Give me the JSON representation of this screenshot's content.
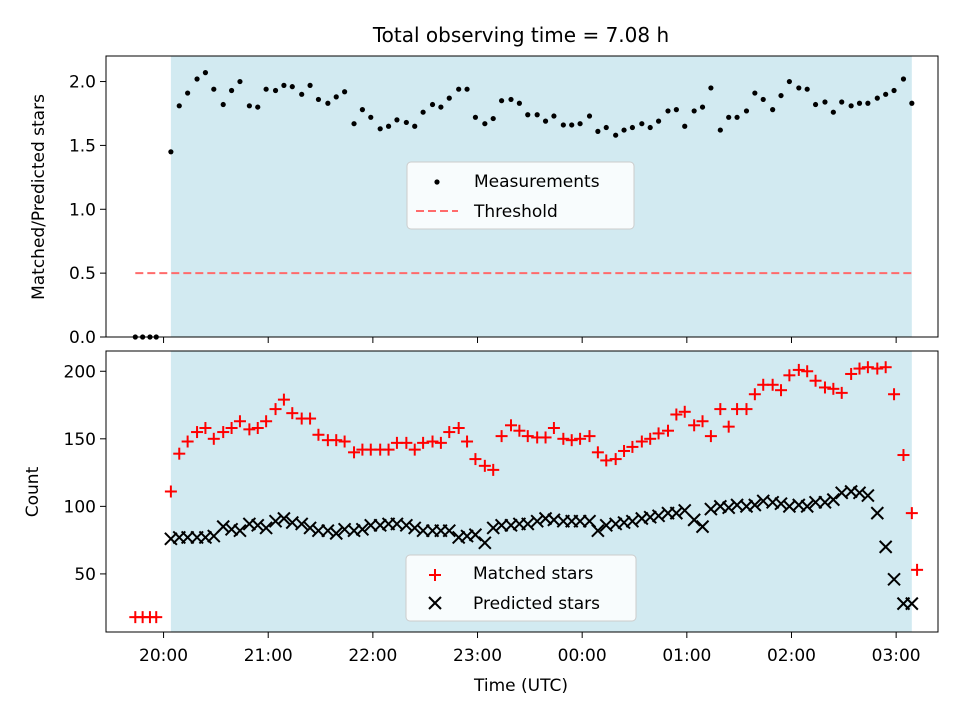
{
  "chart_data": [
    {
      "type": "scatter",
      "title": "Total observing time = 7.08 h",
      "xlabel": "",
      "ylabel": "Matched/Predicted stars",
      "xlim": [
        19.45,
        27.4
      ],
      "ylim": [
        0,
        2.2
      ],
      "y_ticks": [
        0.0,
        0.5,
        1.0,
        1.5,
        2.0
      ],
      "y_tick_labels": [
        "0.0",
        "0.5",
        "1.0",
        "1.5",
        "2.0"
      ],
      "shaded_span": [
        20.07,
        27.15
      ],
      "shade_color": "#add8e6",
      "legend": {
        "position": "center",
        "entries": [
          "Measurements",
          "Threshold"
        ]
      },
      "series": [
        {
          "name": "Measurements",
          "color": "#000000",
          "marker": "dot",
          "x": [
            19.73,
            19.8,
            19.87,
            19.93,
            20.07,
            20.15,
            20.23,
            20.32,
            20.4,
            20.48,
            20.57,
            20.65,
            20.73,
            20.82,
            20.9,
            20.98,
            21.07,
            21.15,
            21.23,
            21.32,
            21.4,
            21.48,
            21.57,
            21.65,
            21.73,
            21.82,
            21.9,
            21.98,
            22.07,
            22.15,
            22.23,
            22.32,
            22.4,
            22.48,
            22.57,
            22.65,
            22.73,
            22.82,
            22.9,
            22.98,
            23.07,
            23.15,
            23.23,
            23.32,
            23.4,
            23.48,
            23.57,
            23.65,
            23.73,
            23.82,
            23.9,
            23.98,
            24.07,
            24.15,
            24.23,
            24.32,
            24.4,
            24.48,
            24.57,
            24.65,
            24.73,
            24.82,
            24.9,
            24.98,
            25.07,
            25.15,
            25.23,
            25.32,
            25.4,
            25.48,
            25.57,
            25.65,
            25.73,
            25.82,
            25.9,
            25.98,
            26.07,
            26.15,
            26.23,
            26.32,
            26.4,
            26.48,
            26.57,
            26.65,
            26.73,
            26.82,
            26.9,
            26.98,
            27.07,
            27.15
          ],
          "y": [
            0,
            0,
            0,
            0,
            1.45,
            1.81,
            1.91,
            2.02,
            2.07,
            1.94,
            1.82,
            1.93,
            2.0,
            1.81,
            1.8,
            1.94,
            1.93,
            1.97,
            1.96,
            1.9,
            1.97,
            1.86,
            1.83,
            1.88,
            1.92,
            1.67,
            1.78,
            1.72,
            1.63,
            1.65,
            1.7,
            1.68,
            1.65,
            1.76,
            1.82,
            1.8,
            1.87,
            1.94,
            1.94,
            1.72,
            1.67,
            1.71,
            1.85,
            1.86,
            1.83,
            1.74,
            1.74,
            1.69,
            1.73,
            1.66,
            1.66,
            1.67,
            1.73,
            1.61,
            1.64,
            1.58,
            1.62,
            1.64,
            1.67,
            1.64,
            1.69,
            1.77,
            1.78,
            1.65,
            1.77,
            1.8,
            1.95,
            1.62,
            1.72,
            1.72,
            1.77,
            1.91,
            1.86,
            1.78,
            1.89,
            2.0,
            1.95,
            1.94,
            1.82,
            1.84,
            1.76,
            1.84,
            1.81,
            1.83,
            1.83,
            1.87,
            1.9,
            1.93,
            2.02,
            1.83
          ]
        },
        {
          "name": "Threshold",
          "color": "#ff6b6b",
          "line_style": "dashed",
          "x": [
            19.73,
            27.15
          ],
          "y": [
            0.5,
            0.5
          ]
        }
      ]
    },
    {
      "type": "scatter",
      "title": "",
      "xlabel": "Time (UTC)",
      "ylabel": "Count",
      "xlim": [
        19.45,
        27.4
      ],
      "ylim": [
        7,
        215
      ],
      "y_ticks": [
        50,
        100,
        150,
        200
      ],
      "y_tick_labels": [
        "50",
        "100",
        "150",
        "200"
      ],
      "x_ticks": [
        20,
        21,
        22,
        23,
        24,
        25,
        26,
        27
      ],
      "x_tick_labels": [
        "20:00",
        "21:00",
        "22:00",
        "23:00",
        "00:00",
        "01:00",
        "02:00",
        "03:00"
      ],
      "shaded_span": [
        20.07,
        27.15
      ],
      "shade_color": "#add8e6",
      "legend": {
        "position": "lower center",
        "entries": [
          "Matched stars",
          "Predicted stars"
        ]
      },
      "series": [
        {
          "name": "Matched stars",
          "color": "#ff0000",
          "marker": "plus",
          "x": [
            19.73,
            19.8,
            19.87,
            19.93,
            20.07,
            20.15,
            20.23,
            20.32,
            20.4,
            20.48,
            20.57,
            20.65,
            20.73,
            20.82,
            20.9,
            20.98,
            21.07,
            21.15,
            21.23,
            21.32,
            21.4,
            21.48,
            21.57,
            21.65,
            21.73,
            21.82,
            21.9,
            21.98,
            22.07,
            22.15,
            22.23,
            22.32,
            22.4,
            22.48,
            22.57,
            22.65,
            22.73,
            22.82,
            22.9,
            22.98,
            23.07,
            23.15,
            23.23,
            23.32,
            23.4,
            23.48,
            23.57,
            23.65,
            23.73,
            23.82,
            23.9,
            23.98,
            24.07,
            24.15,
            24.23,
            24.32,
            24.4,
            24.48,
            24.57,
            24.65,
            24.73,
            24.82,
            24.9,
            24.98,
            25.07,
            25.15,
            25.23,
            25.32,
            25.4,
            25.48,
            25.57,
            25.65,
            25.73,
            25.82,
            25.9,
            25.98,
            26.07,
            26.15,
            26.23,
            26.32,
            26.4,
            26.48,
            26.57,
            26.65,
            26.73,
            26.82,
            26.9,
            26.98,
            27.07,
            27.15
          ],
          "y": [
            18,
            18,
            18,
            18,
            111,
            139,
            148,
            155,
            158,
            150,
            155,
            158,
            163,
            157,
            158,
            163,
            172,
            179,
            169,
            165,
            165,
            153,
            149,
            149,
            148,
            140,
            142,
            142,
            142,
            142,
            147,
            147,
            142,
            147,
            148,
            147,
            155,
            158,
            148,
            135,
            130,
            127,
            152,
            160,
            156,
            152,
            151,
            151,
            158,
            150,
            149,
            150,
            152,
            140,
            134,
            135,
            141,
            144,
            148,
            150,
            154,
            156,
            168,
            170,
            160,
            163,
            152,
            172,
            159,
            172,
            172,
            183,
            190,
            190,
            186,
            197,
            201,
            200,
            193,
            188,
            187,
            184,
            198,
            202,
            203,
            202,
            203,
            183,
            138,
            95
          ],
          "y_extra_last": 53
        },
        {
          "name": "Predicted stars",
          "color": "#000000",
          "marker": "x",
          "x": [
            20.07,
            20.15,
            20.23,
            20.32,
            20.4,
            20.48,
            20.57,
            20.65,
            20.73,
            20.82,
            20.9,
            20.98,
            21.07,
            21.15,
            21.23,
            21.32,
            21.4,
            21.48,
            21.57,
            21.65,
            21.73,
            21.82,
            21.9,
            21.98,
            22.07,
            22.15,
            22.23,
            22.32,
            22.4,
            22.48,
            22.57,
            22.65,
            22.73,
            22.82,
            22.9,
            22.98,
            23.07,
            23.15,
            23.23,
            23.32,
            23.4,
            23.48,
            23.57,
            23.65,
            23.73,
            23.82,
            23.9,
            23.98,
            24.07,
            24.15,
            24.23,
            24.32,
            24.4,
            24.48,
            24.57,
            24.65,
            24.73,
            24.82,
            24.9,
            24.98,
            25.07,
            25.15,
            25.23,
            25.32,
            25.4,
            25.48,
            25.57,
            25.65,
            25.73,
            25.82,
            25.9,
            25.98,
            26.07,
            26.15,
            26.23,
            26.32,
            26.4,
            26.48,
            26.57,
            26.65,
            26.73,
            26.82,
            26.9,
            26.98,
            27.07,
            27.15
          ],
          "y": [
            76,
            77,
            77,
            77,
            77,
            78,
            85,
            83,
            82,
            87,
            86,
            84,
            89,
            91,
            88,
            87,
            84,
            82,
            82,
            80,
            83,
            82,
            83,
            86,
            86,
            87,
            87,
            86,
            84,
            82,
            82,
            82,
            82,
            77,
            78,
            79,
            73,
            84,
            86,
            86,
            87,
            87,
            89,
            91,
            90,
            89,
            89,
            89,
            89,
            82,
            86,
            87,
            88,
            89,
            91,
            92,
            93,
            95,
            95,
            97,
            90,
            85,
            98,
            100,
            99,
            101,
            100,
            101,
            104,
            103,
            102,
            100,
            101,
            100,
            103,
            103,
            105,
            110,
            111,
            110,
            108,
            95,
            70,
            46,
            28,
            28
          ]
        }
      ]
    }
  ]
}
